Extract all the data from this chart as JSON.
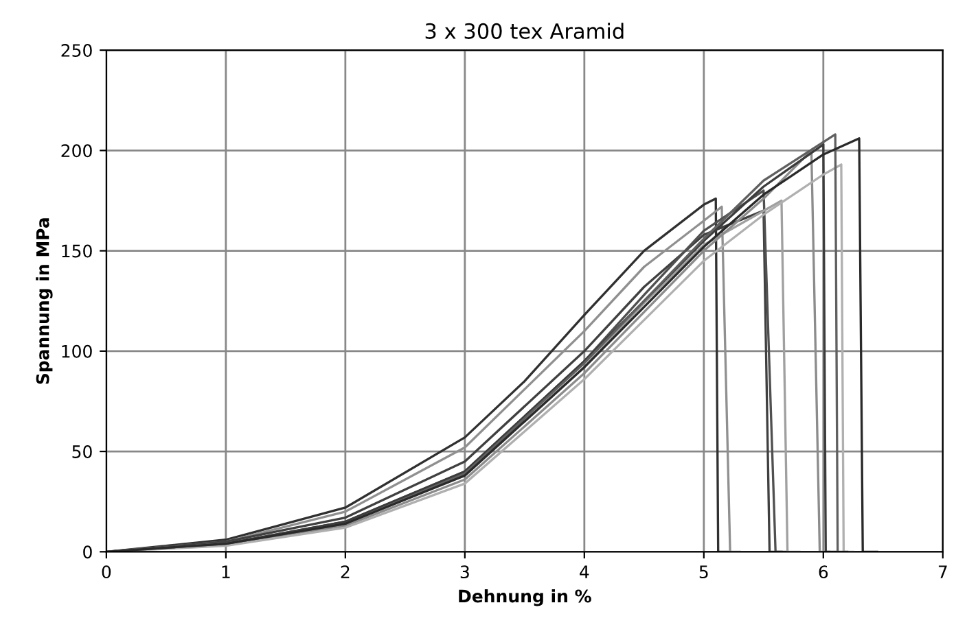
{
  "chart_data": {
    "type": "line",
    "title": "3 x 300 tex Aramid",
    "xlabel": "Dehnung in %",
    "ylabel": "Spannung in MPa",
    "xlim": [
      0,
      7
    ],
    "ylim": [
      0,
      250
    ],
    "xticks": [
      0,
      1,
      2,
      3,
      4,
      5,
      6,
      7
    ],
    "yticks": [
      0,
      50,
      100,
      150,
      200,
      250
    ],
    "grid": true,
    "marker": "none",
    "line_style": "solid",
    "series": [
      {
        "color": "#303030",
        "x": [
          0,
          1,
          2,
          3,
          3.5,
          4,
          4.5,
          5,
          5.1,
          5.12,
          5.2
        ],
        "values": [
          0,
          6,
          22,
          57,
          85,
          118,
          150,
          173,
          176,
          0,
          0
        ]
      },
      {
        "color": "#909090",
        "x": [
          0,
          1,
          2,
          3,
          4,
          4.5,
          5,
          5.15,
          5.22,
          5.3
        ],
        "values": [
          0,
          5,
          20,
          52,
          110,
          142,
          165,
          172,
          0,
          0
        ]
      },
      {
        "color": "#404040",
        "x": [
          0,
          1,
          2,
          3,
          4,
          4.5,
          5,
          5.5,
          5.55,
          5.65
        ],
        "values": [
          0,
          5,
          17,
          45,
          100,
          132,
          158,
          170,
          0,
          0
        ]
      },
      {
        "color": "#505050",
        "x": [
          0,
          1,
          2,
          3,
          4,
          4.5,
          5,
          5.5,
          5.6,
          5.7
        ],
        "values": [
          0,
          4,
          15,
          40,
          95,
          128,
          160,
          180,
          0,
          0
        ]
      },
      {
        "color": "#a0a0a0",
        "x": [
          0,
          1,
          2,
          3,
          4,
          4.5,
          5,
          5.65,
          5.7,
          5.8
        ],
        "values": [
          0,
          4,
          14,
          38,
          92,
          124,
          153,
          175,
          0,
          0
        ]
      },
      {
        "color": "#8c8c8c",
        "x": [
          0,
          1,
          2,
          3,
          4,
          5,
          5.5,
          5.9,
          5.97,
          6.05
        ],
        "values": [
          0,
          4,
          13,
          36,
          89,
          150,
          176,
          200,
          0,
          0
        ]
      },
      {
        "color": "#3c3c3c",
        "x": [
          0,
          1,
          2,
          3,
          4,
          5,
          5.5,
          6.0,
          6.02,
          6.1
        ],
        "values": [
          0,
          4,
          15,
          40,
          95,
          155,
          182,
          203,
          0,
          0
        ]
      },
      {
        "color": "#b0b0b0",
        "x": [
          0,
          1,
          2,
          3,
          4,
          5,
          5.5,
          6.0,
          6.15,
          6.17,
          6.25
        ],
        "values": [
          0,
          3,
          12,
          34,
          86,
          145,
          168,
          188,
          193,
          0,
          0
        ]
      },
      {
        "color": "#606060",
        "x": [
          0,
          1,
          2,
          3,
          4,
          5,
          5.5,
          6.1,
          6.12,
          6.2
        ],
        "values": [
          0,
          4,
          14,
          39,
          94,
          156,
          185,
          208,
          0,
          0
        ]
      },
      {
        "color": "#2a2a2a",
        "x": [
          0,
          1,
          2,
          3,
          4,
          5,
          5.5,
          6.0,
          6.3,
          6.33,
          6.45
        ],
        "values": [
          0,
          4,
          14,
          38,
          92,
          152,
          178,
          198,
          206,
          0,
          0
        ]
      }
    ]
  }
}
